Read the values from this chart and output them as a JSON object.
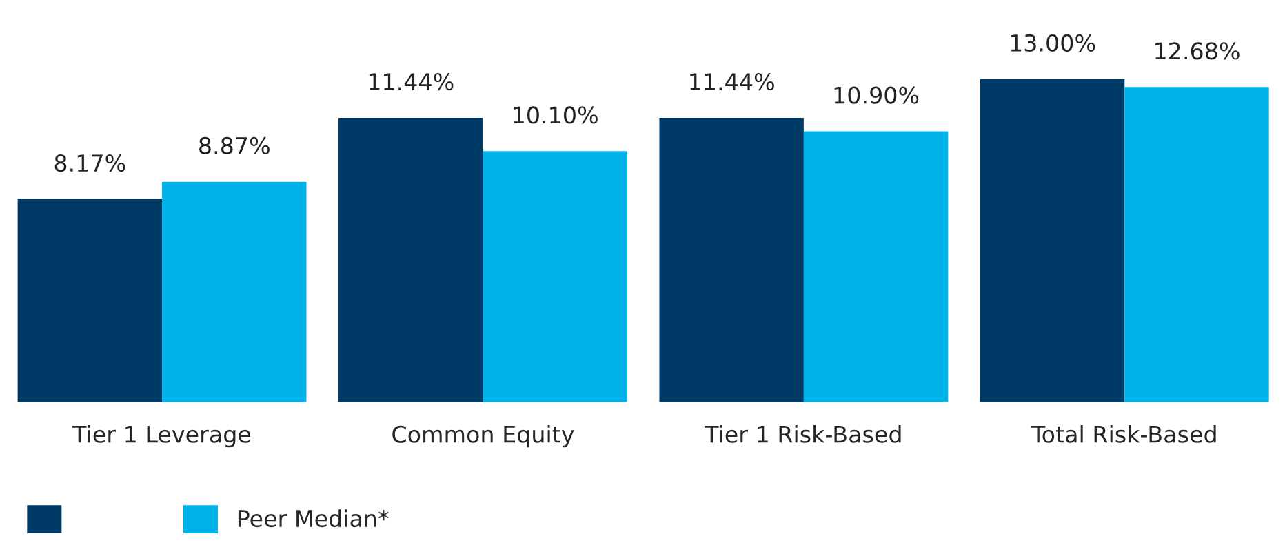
{
  "chart_data": {
    "type": "bar",
    "categories": [
      "Tier 1 Leverage",
      "Common Equity",
      "Tier 1 Risk-Based",
      "Total Risk-Based"
    ],
    "series": [
      {
        "color": "#003a66",
        "values": [
          8.17,
          11.44,
          11.44,
          13.0
        ],
        "value_labels": [
          "8.17%",
          "11.44%",
          "11.44%",
          "13.00%"
        ]
      },
      {
        "name": "Peer Median*",
        "color": "#00b2ea",
        "values": [
          8.87,
          10.1,
          10.9,
          12.68
        ],
        "value_labels": [
          "8.87%",
          "10.10%",
          "10.90%",
          "12.68%"
        ]
      }
    ],
    "legend": "bottom left"
  }
}
